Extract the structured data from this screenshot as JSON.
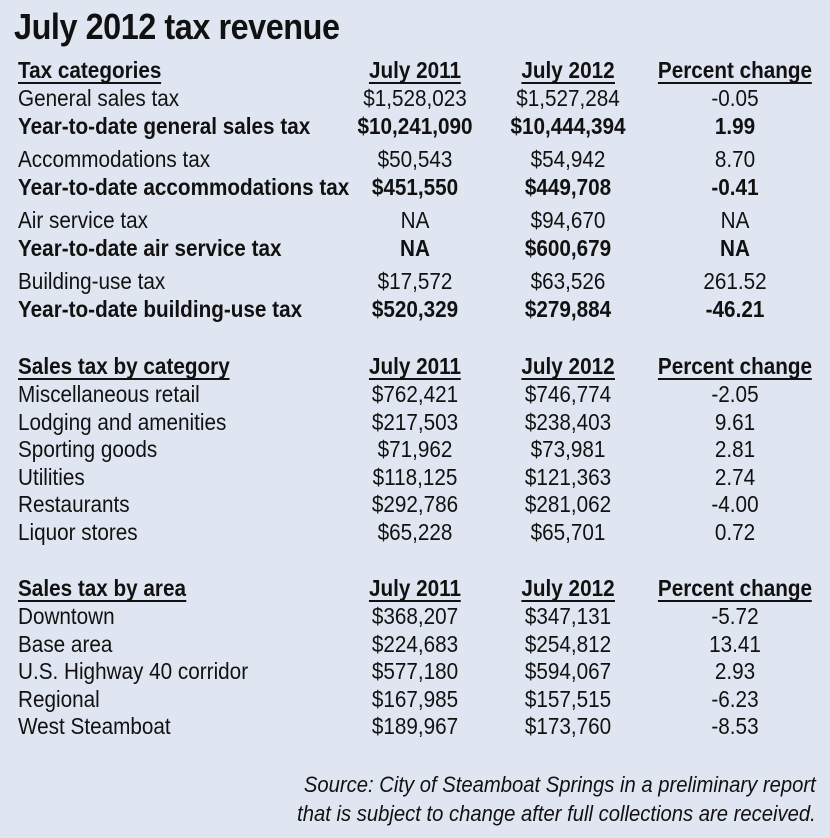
{
  "title": "July 2012 tax revenue",
  "sections": [
    {
      "header": [
        "Tax categories",
        "July 2011",
        "July 2012",
        "Percent change"
      ],
      "rows": [
        {
          "label": "General sales tax",
          "v2011": "$1,528,023",
          "v2012": "$1,527,284",
          "pct": "-0.05",
          "bold": false,
          "gap": false
        },
        {
          "label": "Year-to-date general sales tax",
          "v2011": "$10,241,090",
          "v2012": "$10,444,394",
          "pct": "1.99",
          "bold": true,
          "gap": false
        },
        {
          "label": "Accommodations tax",
          "v2011": "$50,543",
          "v2012": "$54,942",
          "pct": "8.70",
          "bold": false,
          "gap": true
        },
        {
          "label": "Year-to-date accommodations tax",
          "v2011": "$451,550",
          "v2012": "$449,708",
          "pct": "-0.41",
          "bold": true,
          "gap": false
        },
        {
          "label": "Air service tax",
          "v2011": "NA",
          "v2012": "$94,670",
          "pct": "NA",
          "bold": false,
          "gap": true
        },
        {
          "label": "Year-to-date air service tax",
          "v2011": "NA",
          "v2012": "$600,679",
          "pct": "NA",
          "bold": true,
          "gap": false
        },
        {
          "label": "Building-use tax",
          "v2011": "$17,572",
          "v2012": "$63,526",
          "pct": "261.52",
          "bold": false,
          "gap": true
        },
        {
          "label": "Year-to-date building-use tax",
          "v2011": "$520,329",
          "v2012": "$279,884",
          "pct": "-46.21",
          "bold": true,
          "gap": false
        }
      ]
    },
    {
      "header": [
        "Sales tax by category",
        "July 2011",
        "July 2012",
        "Percent change"
      ],
      "rows": [
        {
          "label": "Miscellaneous retail",
          "v2011": "$762,421",
          "v2012": "$746,774",
          "pct": "-2.05",
          "bold": false,
          "gap": false
        },
        {
          "label": "Lodging and amenities",
          "v2011": "$217,503",
          "v2012": "$238,403",
          "pct": "9.61",
          "bold": false,
          "gap": false
        },
        {
          "label": "Sporting goods",
          "v2011": "$71,962",
          "v2012": "$73,981",
          "pct": "2.81",
          "bold": false,
          "gap": false
        },
        {
          "label": "Utilities",
          "v2011": "$118,125",
          "v2012": "$121,363",
          "pct": "2.74",
          "bold": false,
          "gap": false
        },
        {
          "label": "Restaurants",
          "v2011": "$292,786",
          "v2012": "$281,062",
          "pct": "-4.00",
          "bold": false,
          "gap": false
        },
        {
          "label": "Liquor stores",
          "v2011": "$65,228",
          "v2012": "$65,701",
          "pct": "0.72",
          "bold": false,
          "gap": false
        }
      ]
    },
    {
      "header": [
        "Sales tax by area",
        "July 2011",
        "July 2012",
        "Percent change"
      ],
      "rows": [
        {
          "label": "Downtown",
          "v2011": "$368,207",
          "v2012": "$347,131",
          "pct": "-5.72",
          "bold": false,
          "gap": false
        },
        {
          "label": "Base area",
          "v2011": "$224,683",
          "v2012": "$254,812",
          "pct": "13.41",
          "bold": false,
          "gap": false
        },
        {
          "label": "U.S. Highway 40 corridor",
          "v2011": "$577,180",
          "v2012": "$594,067",
          "pct": "2.93",
          "bold": false,
          "gap": false
        },
        {
          "label": "Regional",
          "v2011": "$167,985",
          "v2012": "$157,515",
          "pct": "-6.23",
          "bold": false,
          "gap": false
        },
        {
          "label": "West Steamboat",
          "v2011": "$189,967",
          "v2012": "$173,760",
          "pct": "-8.53",
          "bold": false,
          "gap": false
        }
      ]
    }
  ],
  "source": {
    "line1": "Source: City of Steamboat Springs in a preliminary report",
    "line2": "that is subject to change after full collections are received."
  },
  "colors": {
    "background": "#dfe6f1",
    "text": "#111111"
  }
}
